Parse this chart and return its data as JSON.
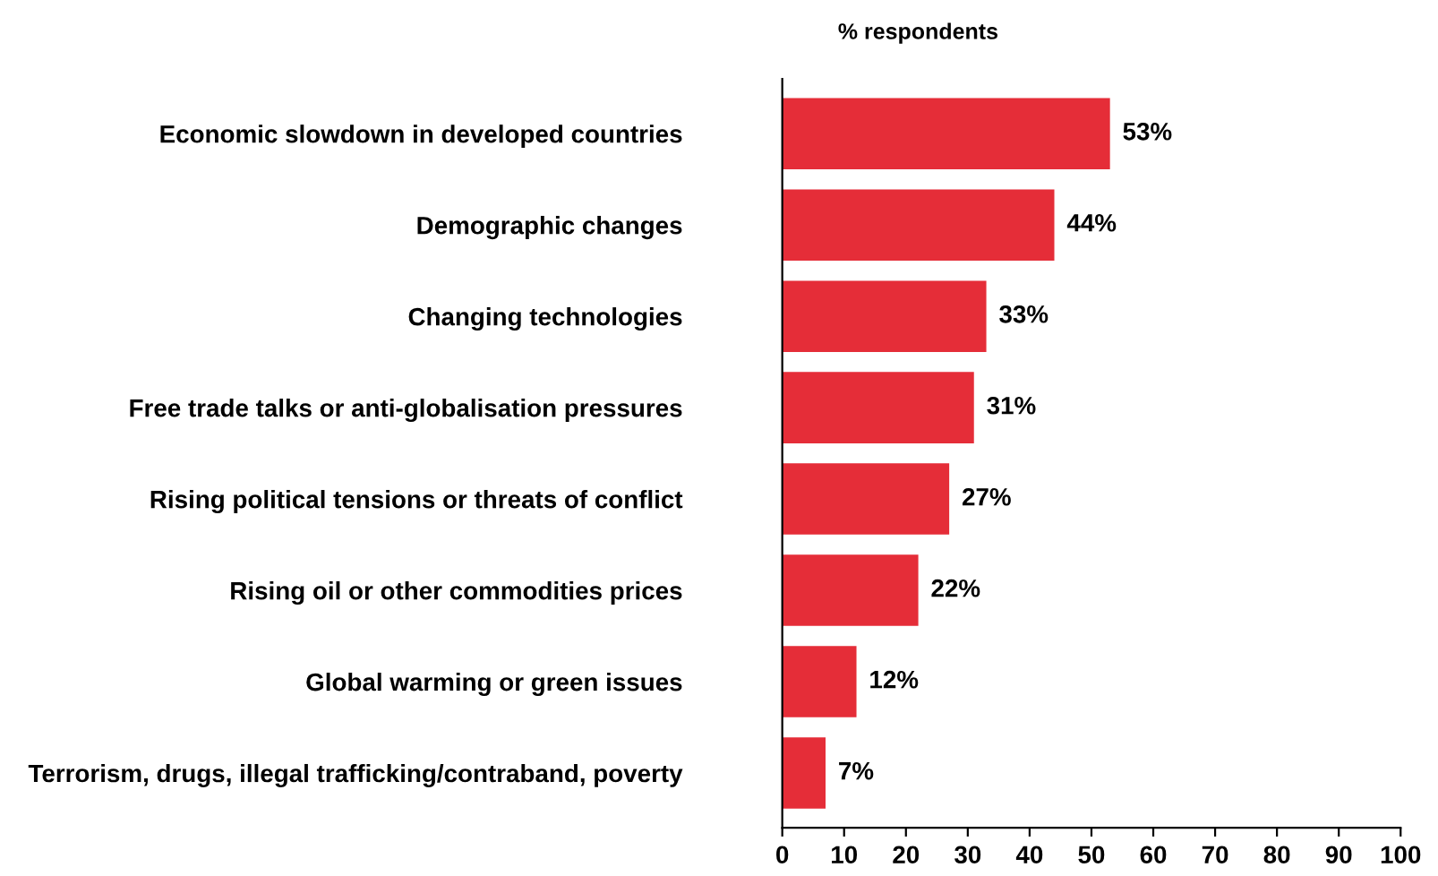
{
  "chart_data": {
    "type": "bar",
    "orientation": "horizontal",
    "title": "% respondents",
    "categories": [
      "Economic slowdown in developed countries",
      "Demographic changes",
      "Changing technologies",
      "Free trade talks or anti-globalisation pressures",
      "Rising political tensions or threats of conflict",
      "Rising oil or other commodities prices",
      "Global warming or green issues",
      "Terrorism, drugs, illegal trafficking/contraband, poverty"
    ],
    "values": [
      53,
      44,
      33,
      31,
      27,
      22,
      12,
      7
    ],
    "value_labels": [
      "53%",
      "44%",
      "33%",
      "31%",
      "27%",
      "22%",
      "12%",
      "7%"
    ],
    "color": "#e52d38",
    "xlim": [
      0,
      100
    ],
    "xticks": [
      0,
      10,
      20,
      30,
      40,
      50,
      60,
      70,
      80,
      90,
      100
    ],
    "grid": false,
    "legend": false
  }
}
